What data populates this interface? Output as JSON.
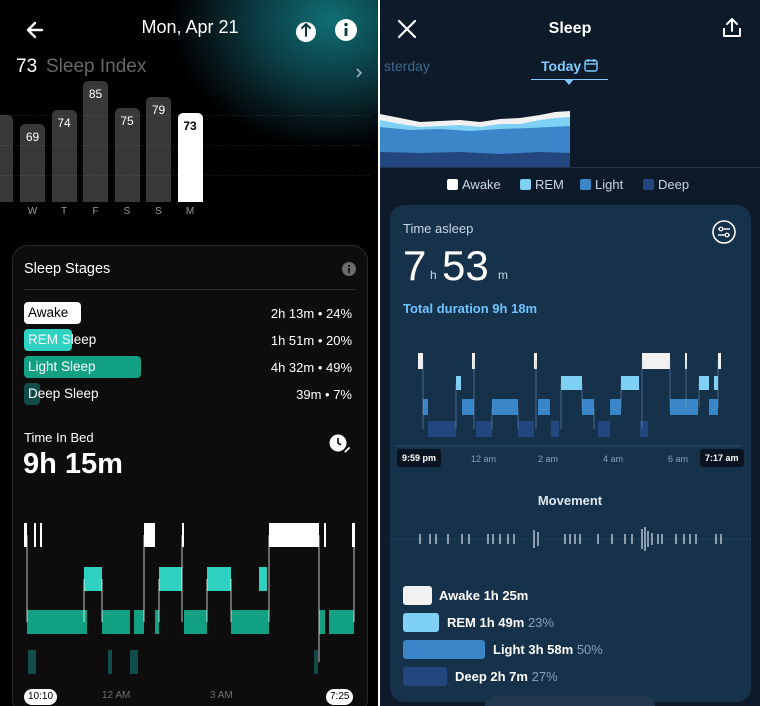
{
  "left": {
    "header": {
      "date": "Mon, Apr 21"
    },
    "sleep_index": {
      "score": "73",
      "label": "Sleep Index"
    },
    "week_scores": [
      {
        "day": "W",
        "score": "69"
      },
      {
        "day": "T",
        "score": "74"
      },
      {
        "day": "F",
        "score": "85"
      },
      {
        "day": "S",
        "score": "75"
      },
      {
        "day": "S",
        "score": "79"
      },
      {
        "day": "M",
        "score": "73"
      }
    ],
    "stages_card": {
      "title": "Sleep Stages",
      "stages": [
        {
          "name": "Awake",
          "value": "2h 13m • 24%",
          "color": "#ffffff",
          "text_color": "#000000"
        },
        {
          "name": "REM Sleep",
          "value": "1h 51m • 20%",
          "color": "#2fd1c0",
          "text_color": "#ffffff"
        },
        {
          "name": "Light Sleep",
          "value": "4h 32m • 49%",
          "color": "#12a083",
          "text_color": "#ffffff"
        },
        {
          "name": "Deep Sleep",
          "value": "39m • 7%",
          "color": "#114c48",
          "text_color": "#ffffff"
        }
      ],
      "time_in_bed_label": "Time In Bed",
      "time_in_bed_value": "9h 15m",
      "axis": {
        "start": "10:10",
        "mid1": "12 AM",
        "mid2": "3 AM",
        "end": "7:25"
      }
    }
  },
  "right": {
    "header": {
      "title": "Sleep"
    },
    "day_tabs": {
      "prev": "sterday",
      "current": "Today"
    },
    "legend": [
      {
        "name": "Awake",
        "color": "#ffffff"
      },
      {
        "name": "REM",
        "color": "#7fd0f5"
      },
      {
        "name": "Light",
        "color": "#3a86c8"
      },
      {
        "name": "Deep",
        "color": "#24467e"
      }
    ],
    "card": {
      "title": "Time asleep",
      "hours": "7",
      "hours_unit": "h",
      "minutes": "53",
      "minutes_unit": "m",
      "total_duration": "Total duration 9h 18m",
      "axis": [
        "9:59 pm",
        "12 am",
        "2 am",
        "4 am",
        "6 am",
        "7:17 am"
      ],
      "movement_label": "Movement",
      "summary": [
        {
          "label": "Awake 1h 25m",
          "pct": "",
          "color": "#f1f1f1"
        },
        {
          "label": "REM 1h 49m",
          "pct": "23%",
          "color": "#7fd0f5"
        },
        {
          "label": "Light 3h 58m",
          "pct": "50%",
          "color": "#3a86c8"
        },
        {
          "label": "Deep 2h 7m",
          "pct": "27%",
          "color": "#24467e"
        }
      ]
    }
  }
}
